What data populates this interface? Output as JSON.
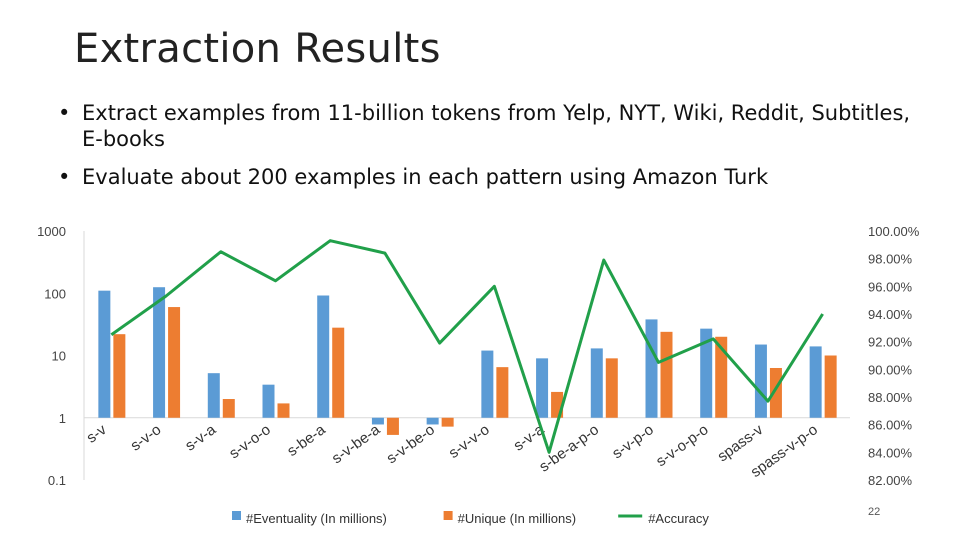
{
  "slide": {
    "title": "Extraction Results",
    "bullets": [
      "Extract examples from 11-billion tokens from Yelp, NYT, Wiki, Reddit, Subtitles, E-books",
      "Evaluate about 200 examples in each pattern using Amazon Turk"
    ],
    "page_number": "22"
  },
  "chart_data": {
    "type": "bar",
    "categories": [
      "s-v",
      "s-v-o",
      "s-v-a",
      "s-v-o-o",
      "s-be-a",
      "s-v-be-a",
      "s-v-be-o",
      "s-v-v-o",
      "s-v-a",
      "s-be-a-p-o",
      "s-v-p-o",
      "s-v-o-p-o",
      "spass-v",
      "spass-v-p-o"
    ],
    "series": [
      {
        "name": "#Eventuality (In millions)",
        "kind": "bar",
        "axis": "left",
        "color": "#5b9bd5",
        "values": [
          110,
          125,
          5.2,
          3.4,
          92,
          0.78,
          0.78,
          12,
          9,
          13,
          38,
          27,
          15,
          14
        ]
      },
      {
        "name": "#Unique (In millions)",
        "kind": "bar",
        "axis": "left",
        "color": "#ed7d31",
        "values": [
          22,
          60,
          2.0,
          1.7,
          28,
          0.53,
          0.72,
          6.5,
          2.6,
          9,
          24,
          20,
          6.3,
          10
        ]
      },
      {
        "name": "#Accuracy",
        "kind": "line",
        "axis": "right",
        "color": "#21a04a",
        "values": [
          92.5,
          95.3,
          98.5,
          96.4,
          99.3,
          98.4,
          91.9,
          96.0,
          84.0,
          97.9,
          90.5,
          92.2,
          87.7,
          94.0
        ]
      }
    ],
    "left_axis": {
      "scale": "log",
      "range": [
        0.1,
        1000
      ],
      "ticks": [
        "0.1",
        "1",
        "10",
        "100",
        "1000"
      ]
    },
    "right_axis": {
      "scale": "linear",
      "range": [
        82,
        100
      ],
      "ticks": [
        "82.00%",
        "84.00%",
        "86.00%",
        "88.00%",
        "90.00%",
        "92.00%",
        "94.00%",
        "96.00%",
        "98.00%",
        "100.00%"
      ]
    },
    "grid": false,
    "legend_position": "bottom"
  }
}
